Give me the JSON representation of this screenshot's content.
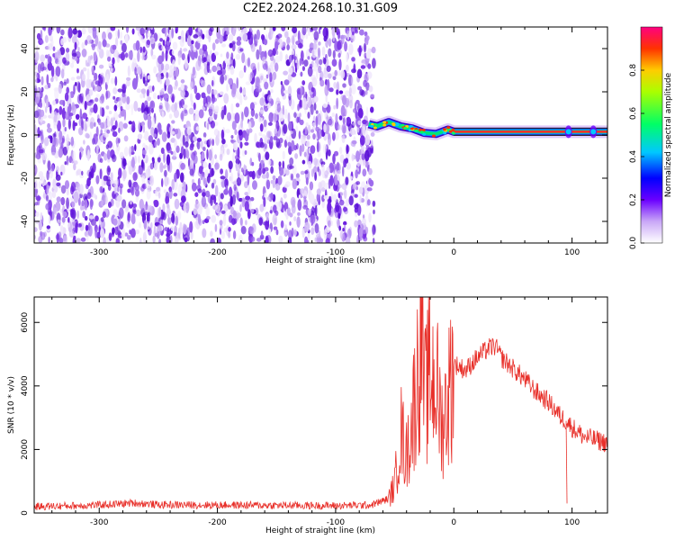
{
  "title": "C2E2.2024.268.10.31.G09",
  "chart_data": [
    {
      "type": "heatmap",
      "xlabel": "Height of straight line (km)",
      "ylabel": "Frequency (Hz)",
      "xlim": [
        -355,
        130
      ],
      "ylim": [
        -50,
        50
      ],
      "xticks": [
        -300,
        -200,
        -100,
        0,
        100
      ],
      "yticks": [
        -40,
        -20,
        0,
        20,
        40
      ],
      "noise_region_x": [
        -355,
        -72
      ],
      "signal_line_frequency": 1.5,
      "signal_trace": [
        {
          "x": -72,
          "y": 5
        },
        {
          "x": -65,
          "y": 4
        },
        {
          "x": -55,
          "y": 6
        },
        {
          "x": -45,
          "y": 4
        },
        {
          "x": -35,
          "y": 3
        },
        {
          "x": -25,
          "y": 1
        },
        {
          "x": -15,
          "y": 0.5
        },
        {
          "x": -5,
          "y": 2.5
        },
        {
          "x": 0,
          "y": 1.5
        },
        {
          "x": 130,
          "y": 1.5
        }
      ],
      "colorbar": {
        "label": "Normalized spectral amplitude",
        "ticks": [
          0.0,
          0.2,
          0.4,
          0.6,
          0.8
        ],
        "range": [
          0,
          1
        ]
      }
    },
    {
      "type": "line",
      "xlabel": "Height of straight line (km)",
      "ylabel": "SNR (10 * v/v)",
      "xlim": [
        -355,
        130
      ],
      "ylim": [
        0,
        6800
      ],
      "xticks": [
        -300,
        -200,
        -100,
        0,
        100
      ],
      "yticks": [
        0,
        2000,
        4000,
        6000
      ],
      "series": [
        {
          "color": "#e8302a",
          "x": [
            -355,
            -300,
            -270,
            -250,
            -200,
            -150,
            -100,
            -70,
            -55,
            -50,
            -45,
            -40,
            -35,
            -30,
            -27,
            -25,
            -20,
            -15,
            -10,
            -5,
            0,
            10,
            20,
            30,
            35,
            40,
            50,
            60,
            70,
            80,
            90,
            95,
            100,
            110,
            120,
            130
          ],
          "y": [
            200,
            250,
            320,
            260,
            250,
            240,
            230,
            250,
            450,
            900,
            2600,
            1800,
            3000,
            4600,
            6200,
            3500,
            4400,
            4100,
            2800,
            3600,
            4700,
            4500,
            4900,
            5200,
            5250,
            4900,
            4550,
            4200,
            3800,
            3500,
            3050,
            2900,
            2700,
            2400,
            2300,
            2200
          ]
        }
      ]
    }
  ]
}
